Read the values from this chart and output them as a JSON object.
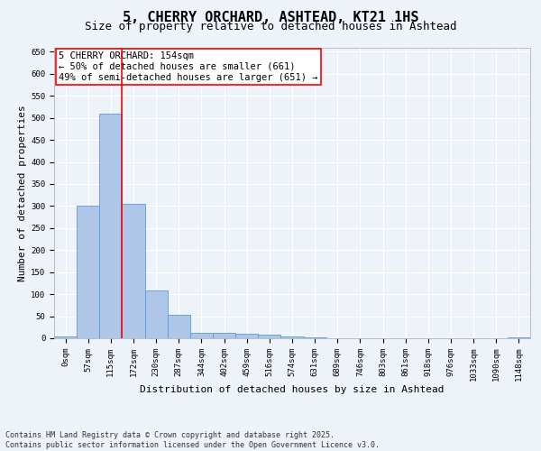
{
  "title1": "5, CHERRY ORCHARD, ASHTEAD, KT21 1HS",
  "title2": "Size of property relative to detached houses in Ashtead",
  "xlabel": "Distribution of detached houses by size in Ashtead",
  "ylabel": "Number of detached properties",
  "bar_labels": [
    "0sqm",
    "57sqm",
    "115sqm",
    "172sqm",
    "230sqm",
    "287sqm",
    "344sqm",
    "402sqm",
    "459sqm",
    "516sqm",
    "574sqm",
    "631sqm",
    "689sqm",
    "746sqm",
    "803sqm",
    "861sqm",
    "918sqm",
    "976sqm",
    "1033sqm",
    "1090sqm",
    "1148sqm"
  ],
  "bar_values": [
    5,
    300,
    510,
    305,
    108,
    53,
    12,
    13,
    11,
    8,
    5,
    3,
    0,
    0,
    0,
    1,
    0,
    0,
    0,
    0,
    2
  ],
  "bar_color": "#aec6e8",
  "bar_edge_color": "#5b9bd5",
  "vline_x": 2.5,
  "vline_color": "red",
  "annotation_title": "5 CHERRY ORCHARD: 154sqm",
  "annotation_line1": "← 50% of detached houses are smaller (661)",
  "annotation_line2": "49% of semi-detached houses are larger (651) →",
  "annotation_box_color": "white",
  "annotation_box_edge": "red",
  "ylim": [
    0,
    660
  ],
  "yticks": [
    0,
    50,
    100,
    150,
    200,
    250,
    300,
    350,
    400,
    450,
    500,
    550,
    600,
    650
  ],
  "footnote1": "Contains HM Land Registry data © Crown copyright and database right 2025.",
  "footnote2": "Contains public sector information licensed under the Open Government Licence v3.0.",
  "background_color": "#eef2f9",
  "grid_color": "white",
  "title1_fontsize": 11,
  "title2_fontsize": 9,
  "axis_label_fontsize": 8,
  "tick_fontsize": 6.5,
  "annotation_fontsize": 7.5,
  "footnote_fontsize": 6
}
